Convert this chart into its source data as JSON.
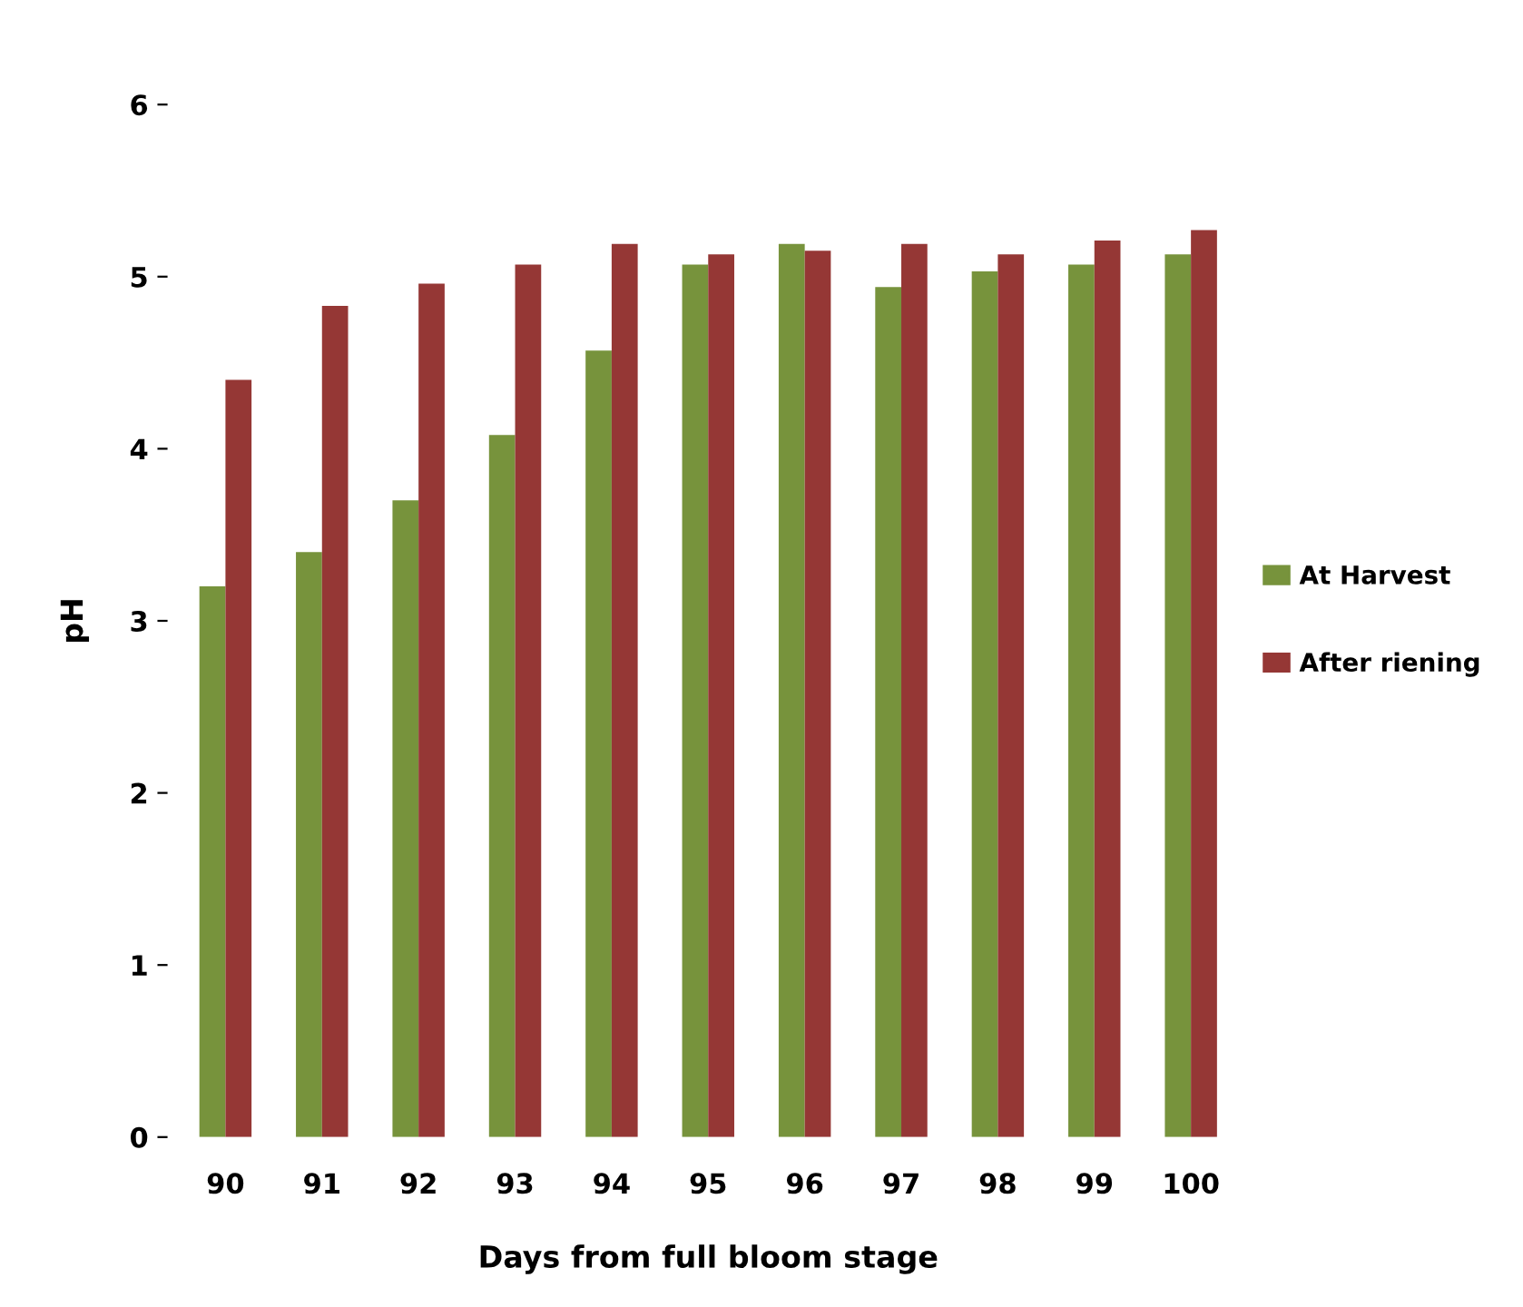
{
  "chart_data": {
    "type": "bar",
    "xlabel": "Days from full bloom stage",
    "ylabel": "pH",
    "categories": [
      "90",
      "91",
      "92",
      "93",
      "94",
      "95",
      "96",
      "97",
      "98",
      "99",
      "100"
    ],
    "series": [
      {
        "name": "At Harvest",
        "color": "#77933c",
        "values": [
          3.2,
          3.4,
          3.7,
          4.08,
          4.57,
          5.07,
          5.19,
          4.94,
          5.03,
          5.07,
          5.13
        ]
      },
      {
        "name": "After riening",
        "color": "#953735",
        "values": [
          4.4,
          4.83,
          4.96,
          5.07,
          5.19,
          5.13,
          5.15,
          5.19,
          5.13,
          5.21,
          5.27
        ]
      }
    ],
    "ylim": [
      0,
      6
    ],
    "yticks": [
      0,
      1,
      2,
      3,
      4,
      5,
      6
    ],
    "grid": false,
    "legend": "right"
  }
}
